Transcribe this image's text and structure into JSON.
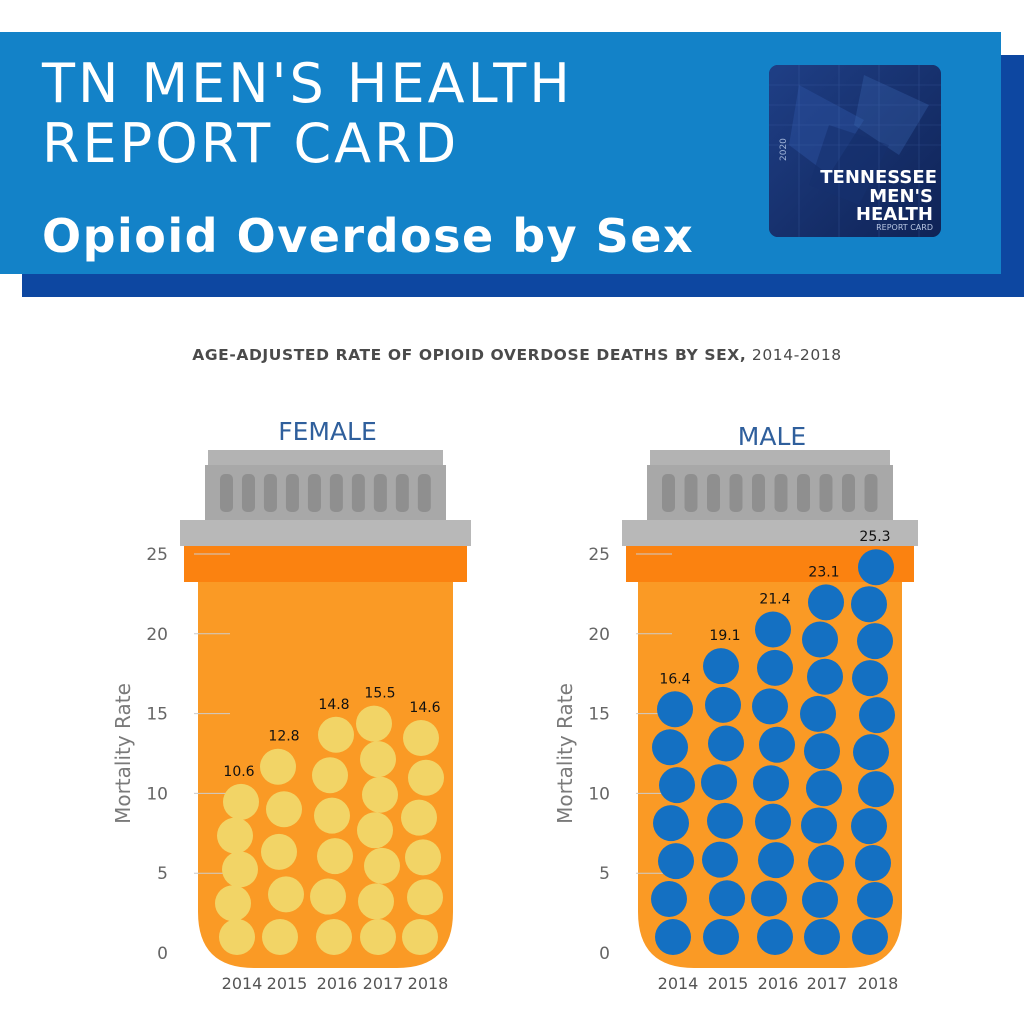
{
  "header": {
    "title": "TN MEN'S HEALTH REPORT CARD",
    "subtitle": "Opioid Overdose by Sex",
    "logo": {
      "year": "2020",
      "line1": "TENNESSEE",
      "line2": "MEN'S",
      "line3": "HEALTH",
      "line4": "REPORT CARD"
    }
  },
  "colors": {
    "banner": "#1382c8",
    "banner_shadow": "#0d47a1",
    "bottle": "#fa9a25",
    "bottle_band": "#fb8210",
    "cap": "#a8a8a8",
    "female_pill": "#f2d466",
    "male_pill": "#1470c2",
    "panel_title": "#2f5f9c"
  },
  "chart_data": {
    "title": "AGE-ADJUSTED RATE OF OPIOID OVERDOSE DEATHS BY SEX,",
    "title_suffix": "2014-2018",
    "type": "bar",
    "ylabel": "Mortality Rate",
    "yticks": [
      0,
      5,
      10,
      15,
      20,
      25
    ],
    "ylim": [
      0,
      25
    ],
    "categories": [
      "2014",
      "2015",
      "2016",
      "2017",
      "2018"
    ],
    "panels": [
      {
        "name": "FEMALE",
        "values": [
          10.6,
          12.8,
          14.8,
          15.5,
          14.6
        ],
        "labels": [
          "10.6",
          "12.8",
          "14.8",
          "15.5",
          "14.6"
        ]
      },
      {
        "name": "MALE",
        "values": [
          16.4,
          19.1,
          21.4,
          23.1,
          25.3
        ],
        "labels": [
          "16.4",
          "19.1",
          "21.4",
          "23.1",
          "25.3"
        ]
      }
    ]
  }
}
